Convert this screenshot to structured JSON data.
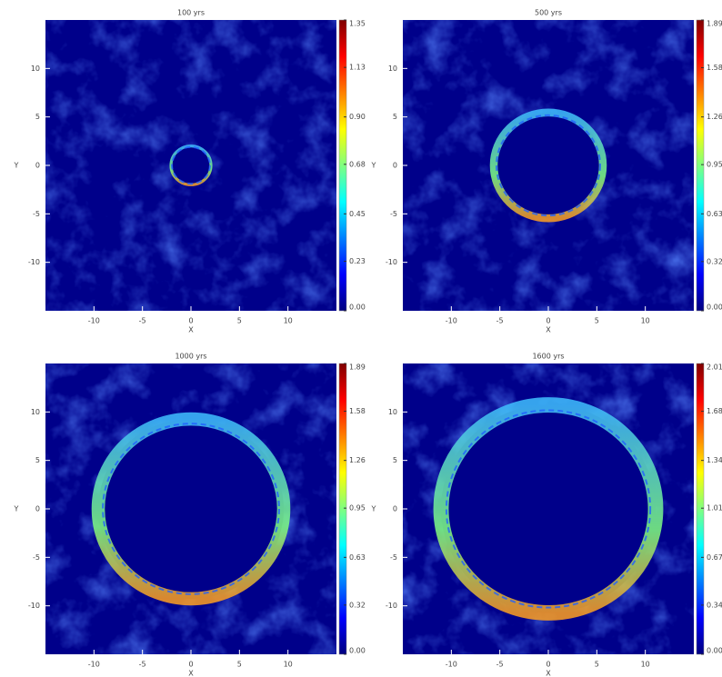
{
  "chart_data": [
    {
      "type": "image",
      "title": "100 yrs",
      "xlabel": "X",
      "ylabel": "Y",
      "xlim": [
        -15,
        15
      ],
      "ylim": [
        -15,
        15
      ],
      "xticks": [
        -10,
        -5,
        0,
        5,
        10
      ],
      "yticks": [
        -10,
        -5,
        0,
        5,
        10
      ],
      "colormap": "jet",
      "clim": [
        0,
        1.35
      ],
      "cticks": [
        {
          "value": 0,
          "label": "0.00"
        },
        {
          "value": 0.23,
          "label": "0.23"
        },
        {
          "value": 0.45,
          "label": "0.45"
        },
        {
          "value": 0.68,
          "label": "0.68"
        },
        {
          "value": 0.9,
          "label": "0.90"
        },
        {
          "value": 1.13,
          "label": "1.13"
        },
        {
          "value": 1.35,
          "label": "1.35"
        }
      ]
    },
    {
      "type": "image",
      "title": "500 yrs",
      "xlabel": "X",
      "ylabel": "Y",
      "xlim": [
        -15,
        15
      ],
      "ylim": [
        -15,
        15
      ],
      "xticks": [
        -10,
        -5,
        0,
        5,
        10
      ],
      "yticks": [
        -10,
        -5,
        0,
        5,
        10
      ],
      "colormap": "jet",
      "clim": [
        0,
        1.89
      ],
      "cticks": [
        {
          "value": 0,
          "label": "0.00"
        },
        {
          "value": 0.32,
          "label": "0.32"
        },
        {
          "value": 0.63,
          "label": "0.63"
        },
        {
          "value": 0.95,
          "label": "0.95"
        },
        {
          "value": 1.26,
          "label": "1.26"
        },
        {
          "value": 1.58,
          "label": "1.58"
        },
        {
          "value": 1.89,
          "label": "1.89"
        }
      ]
    },
    {
      "type": "image",
      "title": "1000 yrs",
      "xlabel": "X",
      "ylabel": "Y",
      "xlim": [
        -15,
        15
      ],
      "ylim": [
        -15,
        15
      ],
      "xticks": [
        -10,
        -5,
        0,
        5,
        10
      ],
      "yticks": [
        -10,
        -5,
        0,
        5,
        10
      ],
      "colormap": "jet",
      "clim": [
        0,
        1.89
      ],
      "cticks": [
        {
          "value": 0,
          "label": "0.00"
        },
        {
          "value": 0.32,
          "label": "0.32"
        },
        {
          "value": 0.63,
          "label": "0.63"
        },
        {
          "value": 0.95,
          "label": "0.95"
        },
        {
          "value": 1.26,
          "label": "1.26"
        },
        {
          "value": 1.58,
          "label": "1.58"
        },
        {
          "value": 1.89,
          "label": "1.89"
        }
      ]
    },
    {
      "type": "image",
      "title": "1600 yrs",
      "xlabel": "X",
      "ylabel": "Y",
      "xlim": [
        -15,
        15
      ],
      "ylim": [
        -15,
        15
      ],
      "xticks": [
        -10,
        -5,
        0,
        5,
        10
      ],
      "yticks": [
        -10,
        -5,
        0,
        5,
        10
      ],
      "colormap": "jet",
      "clim": [
        0,
        2.01
      ],
      "cticks": [
        {
          "value": 0,
          "label": "0.00"
        },
        {
          "value": 0.34,
          "label": "0.34"
        },
        {
          "value": 0.67,
          "label": "0.67"
        },
        {
          "value": 1.01,
          "label": "1.01"
        },
        {
          "value": 1.34,
          "label": "1.34"
        },
        {
          "value": 1.68,
          "label": "1.68"
        },
        {
          "value": 2.01,
          "label": "2.01"
        }
      ]
    }
  ]
}
